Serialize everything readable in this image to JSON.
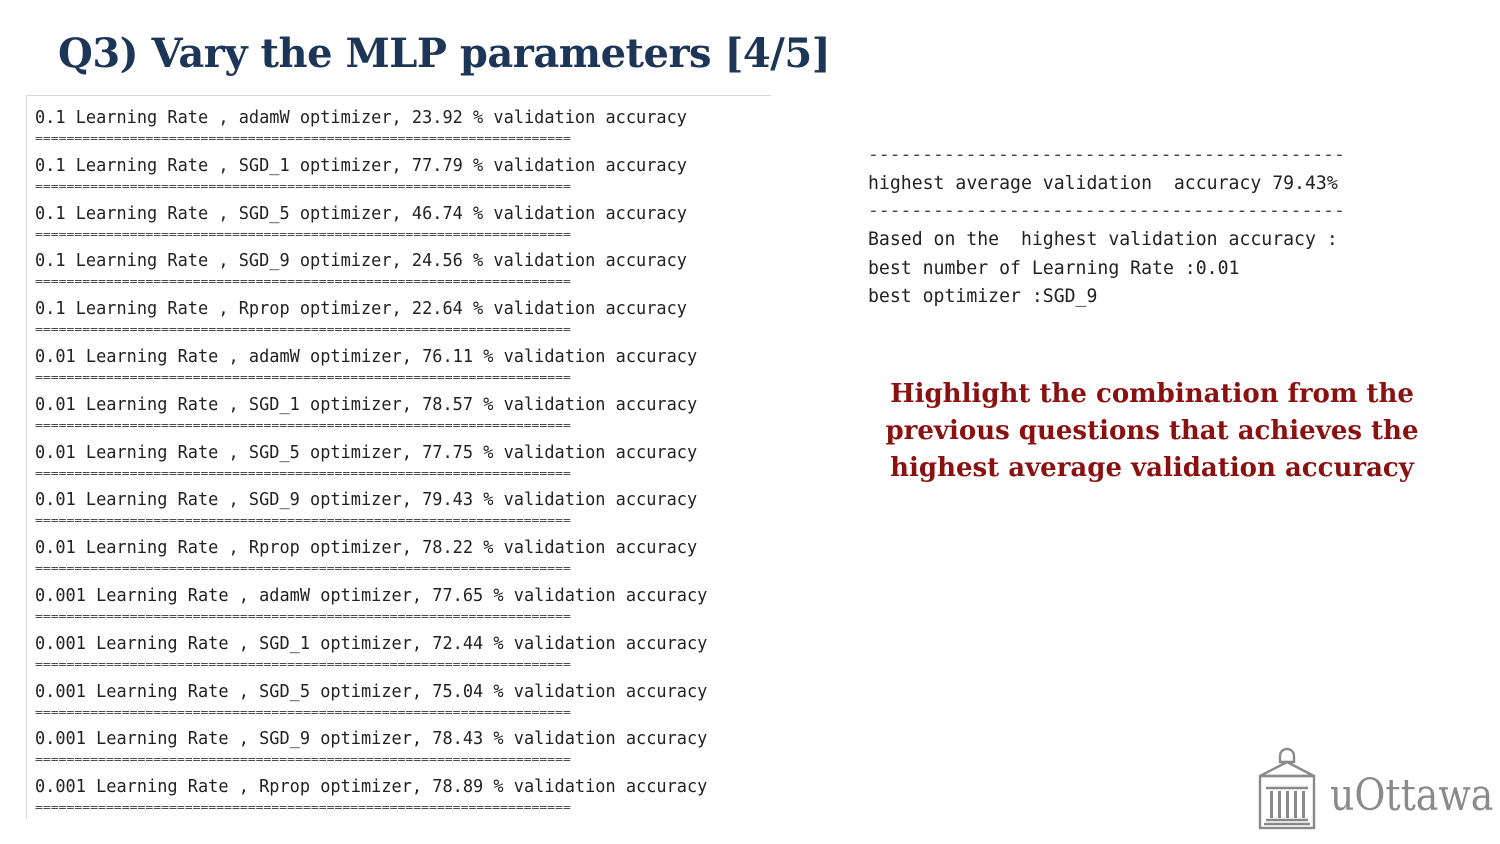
{
  "slide": {
    "title": "Q3) Vary the MLP parameters [4/5]"
  },
  "console_left": {
    "separator": "====================================================================",
    "results": [
      "0.1 Learning Rate , adamW optimizer, 23.92 % validation accuracy",
      "0.1 Learning Rate , SGD_1 optimizer, 77.79 % validation accuracy",
      "0.1 Learning Rate , SGD_5 optimizer, 46.74 % validation accuracy",
      "0.1 Learning Rate , SGD_9 optimizer, 24.56 % validation accuracy",
      "0.1 Learning Rate , Rprop optimizer, 22.64 % validation accuracy",
      "0.01 Learning Rate , adamW optimizer, 76.11 % validation accuracy",
      "0.01 Learning Rate , SGD_1 optimizer, 78.57 % validation accuracy",
      "0.01 Learning Rate , SGD_5 optimizer, 77.75 % validation accuracy",
      "0.01 Learning Rate , SGD_9 optimizer, 79.43 % validation accuracy",
      "0.01 Learning Rate , Rprop optimizer, 78.22 % validation accuracy",
      "0.001 Learning Rate , adamW optimizer, 77.65 % validation accuracy",
      "0.001 Learning Rate , SGD_1 optimizer, 72.44 % validation accuracy",
      "0.001 Learning Rate , SGD_5 optimizer, 75.04 % validation accuracy",
      "0.001 Learning Rate , SGD_9 optimizer, 78.43 % validation accuracy",
      "0.001 Learning Rate , Rprop optimizer, 78.89 % validation accuracy"
    ]
  },
  "console_right": {
    "dashes": "--------------------------------------------",
    "highest": "highest average validation  accuracy 79.43%",
    "based_on": "Based on the  highest validation accuracy :",
    "best_lr": "best number of Learning Rate :0.01",
    "best_optimizer": "best optimizer :SGD_9"
  },
  "note": {
    "text": "Highlight the combination from the previous questions that achieves the highest average validation accuracy"
  },
  "logo": {
    "text": "uOttawa",
    "color": "#8a8a8a"
  },
  "colors": {
    "title": "#1d3557",
    "note": "#8b1111"
  }
}
